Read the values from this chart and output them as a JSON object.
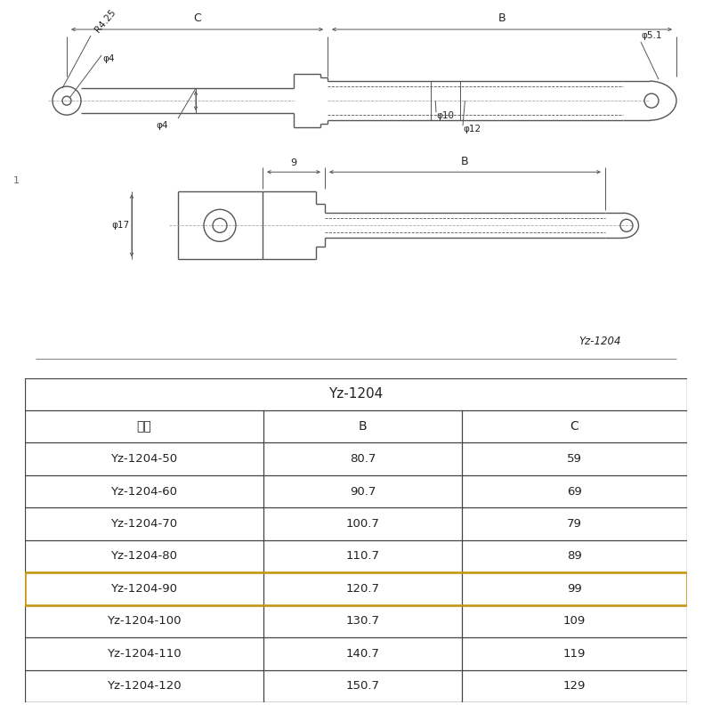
{
  "bg_color": "#ffffff",
  "table_title": "Yz-1204",
  "col_headers": [
    "型号",
    "B",
    "C"
  ],
  "rows": [
    [
      "Yz-1204-50",
      "80.7",
      "59"
    ],
    [
      "Yz-1204-60",
      "90.7",
      "69"
    ],
    [
      "Yz-1204-70",
      "100.7",
      "79"
    ],
    [
      "Yz-1204-80",
      "110.7",
      "89"
    ],
    [
      "Yz-1204-90",
      "120.7",
      "99"
    ],
    [
      "Yz-1204-100",
      "130.7",
      "109"
    ],
    [
      "Yz-1204-110",
      "140.7",
      "119"
    ],
    [
      "Yz-1204-120",
      "150.7",
      "129"
    ]
  ],
  "highlighted_row": 4,
  "highlight_color": "#c8960c",
  "line_color": "#555555",
  "text_color": "#222222",
  "label_R425": "R4.25",
  "label_phi4_top": "φ4",
  "label_phi4_rod": "φ4",
  "label_phi10": "φ10",
  "label_phi12": "φ12",
  "label_phi51": "φ5.1",
  "label_phi17": "φ17",
  "label_9": "9",
  "label_B": "B",
  "label_C": "C",
  "label_Yz": "Yz-1204",
  "label_1": "1"
}
